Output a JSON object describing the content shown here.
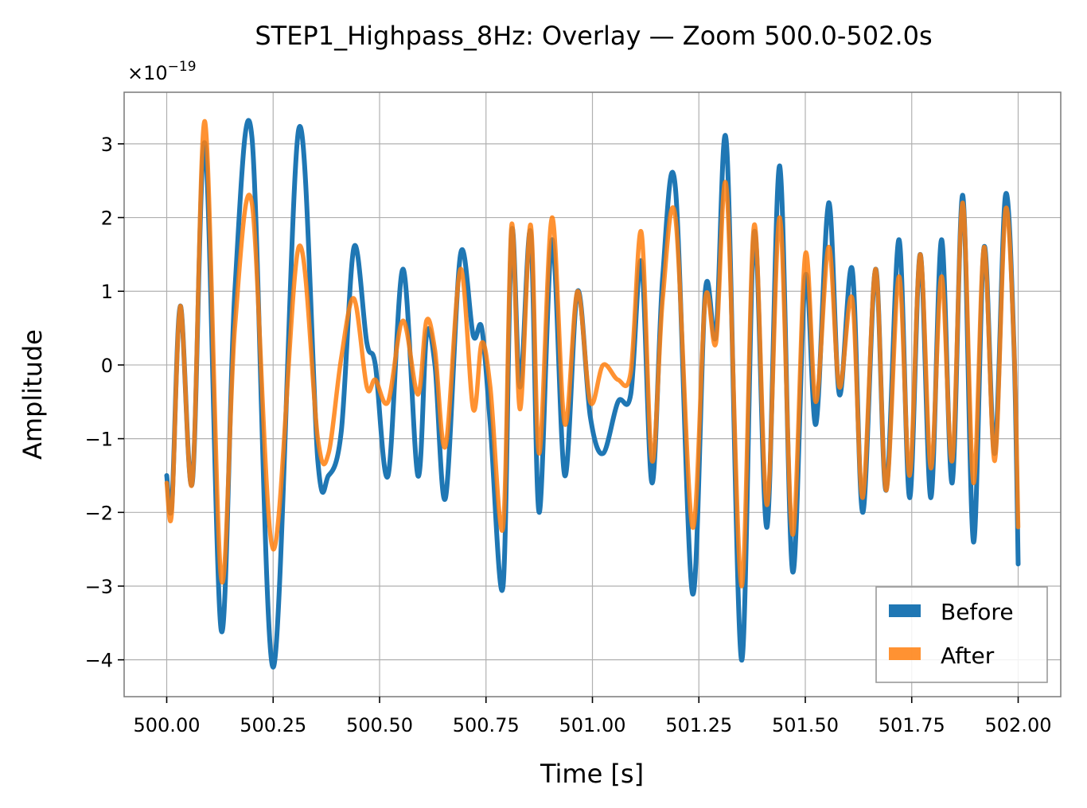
{
  "chart_data": {
    "type": "line",
    "title": "STEP1_Highpass_8Hz: Overlay — Zoom 500.0-502.0s",
    "xlabel": "Time [s]",
    "ylabel": "Amplitude",
    "offset_base": "×10",
    "offset_exponent": "−19",
    "xlim": [
      499.9,
      502.1
    ],
    "ylim": [
      -4.5,
      3.7
    ],
    "xticks": [
      500.0,
      500.25,
      500.5,
      500.75,
      501.0,
      501.25,
      501.5,
      501.75,
      502.0
    ],
    "xtick_labels": [
      "500.00",
      "500.25",
      "500.50",
      "500.75",
      "501.00",
      "501.25",
      "501.50",
      "501.75",
      "502.00"
    ],
    "yticks": [
      -4,
      -3,
      -2,
      -1,
      0,
      1,
      2,
      3
    ],
    "ytick_labels": [
      "−4",
      "−3",
      "−2",
      "−1",
      "0",
      "1",
      "2",
      "3"
    ],
    "grid": true,
    "legend_position": "lower-right",
    "series": [
      {
        "name": "Before",
        "color": "#1f77b4",
        "x": [
          500.0,
          500.012,
          500.032,
          500.06,
          500.09,
          500.128,
          500.16,
          500.2,
          500.25,
          500.31,
          500.355,
          500.38,
          500.41,
          500.44,
          500.47,
          500.49,
          500.52,
          500.555,
          500.59,
          500.61,
          500.63,
          500.655,
          500.69,
          500.72,
          500.74,
          500.76,
          500.79,
          500.81,
          500.83,
          500.855,
          500.875,
          500.905,
          500.935,
          500.965,
          500.995,
          501.025,
          501.06,
          501.09,
          501.115,
          501.14,
          501.165,
          501.195,
          501.235,
          501.265,
          501.29,
          501.315,
          501.35,
          501.38,
          501.41,
          501.44,
          501.47,
          501.5,
          501.525,
          501.555,
          501.58,
          501.61,
          501.635,
          501.665,
          501.69,
          501.72,
          501.745,
          501.77,
          501.795,
          501.82,
          501.845,
          501.87,
          501.895,
          501.92,
          501.945,
          501.97,
          501.99,
          502.0
        ],
        "y": [
          -1.5,
          -1.9,
          0.8,
          -1.6,
          3.0,
          -3.6,
          1.0,
          3.1,
          -4.1,
          3.2,
          -1.3,
          -1.5,
          -0.9,
          1.6,
          0.3,
          0.0,
          -1.5,
          1.3,
          -1.5,
          0.4,
          0.0,
          -1.8,
          1.5,
          0.4,
          0.5,
          -0.8,
          -3.0,
          1.8,
          -0.3,
          1.8,
          -2.0,
          1.7,
          -1.5,
          1.0,
          -0.7,
          -1.2,
          -0.5,
          -0.4,
          1.4,
          -1.6,
          1.2,
          2.4,
          -3.1,
          1.0,
          0.4,
          3.0,
          -4.0,
          1.8,
          -2.2,
          2.7,
          -2.8,
          1.2,
          -0.8,
          2.2,
          -0.4,
          1.3,
          -2.0,
          1.3,
          -1.7,
          1.7,
          -1.8,
          1.5,
          -1.8,
          1.7,
          -1.6,
          2.3,
          -2.4,
          1.6,
          -1.2,
          2.3,
          0.3,
          -2.7
        ]
      },
      {
        "name": "After",
        "color": "#ff7f0e",
        "x": [
          500.0,
          500.012,
          500.032,
          500.06,
          500.09,
          500.128,
          500.16,
          500.2,
          500.25,
          500.31,
          500.355,
          500.38,
          500.41,
          500.44,
          500.47,
          500.49,
          500.52,
          500.555,
          500.59,
          500.61,
          500.63,
          500.655,
          500.69,
          500.72,
          500.74,
          500.76,
          500.79,
          500.81,
          500.83,
          500.855,
          500.875,
          500.905,
          500.935,
          500.965,
          500.995,
          501.025,
          501.06,
          501.09,
          501.115,
          501.14,
          501.165,
          501.195,
          501.235,
          501.265,
          501.29,
          501.315,
          501.35,
          501.38,
          501.41,
          501.44,
          501.47,
          501.5,
          501.525,
          501.555,
          501.58,
          501.61,
          501.635,
          501.665,
          501.69,
          501.72,
          501.745,
          501.77,
          501.795,
          501.82,
          501.845,
          501.87,
          501.895,
          501.92,
          501.945,
          501.97,
          501.99,
          502.0
        ],
        "y": [
          -1.6,
          -2.0,
          0.8,
          -1.6,
          3.3,
          -2.9,
          0.5,
          2.2,
          -2.5,
          1.6,
          -1.0,
          -1.2,
          0.1,
          0.9,
          -0.3,
          -0.2,
          -0.5,
          0.6,
          -0.4,
          0.6,
          0.2,
          -1.1,
          1.3,
          -0.6,
          0.3,
          -0.3,
          -2.2,
          1.9,
          -0.6,
          1.9,
          -1.2,
          2.0,
          -0.8,
          1.0,
          -0.5,
          0.0,
          -0.2,
          -0.1,
          1.8,
          -1.3,
          0.9,
          2.0,
          -2.2,
          0.9,
          0.3,
          2.4,
          -3.0,
          1.9,
          -1.9,
          2.0,
          -2.3,
          1.5,
          -0.5,
          1.6,
          -0.3,
          0.9,
          -1.8,
          1.3,
          -1.7,
          1.2,
          -1.5,
          1.5,
          -1.4,
          1.2,
          -1.3,
          2.2,
          -1.6,
          1.6,
          -1.3,
          2.1,
          0.3,
          -2.2
        ]
      }
    ]
  }
}
